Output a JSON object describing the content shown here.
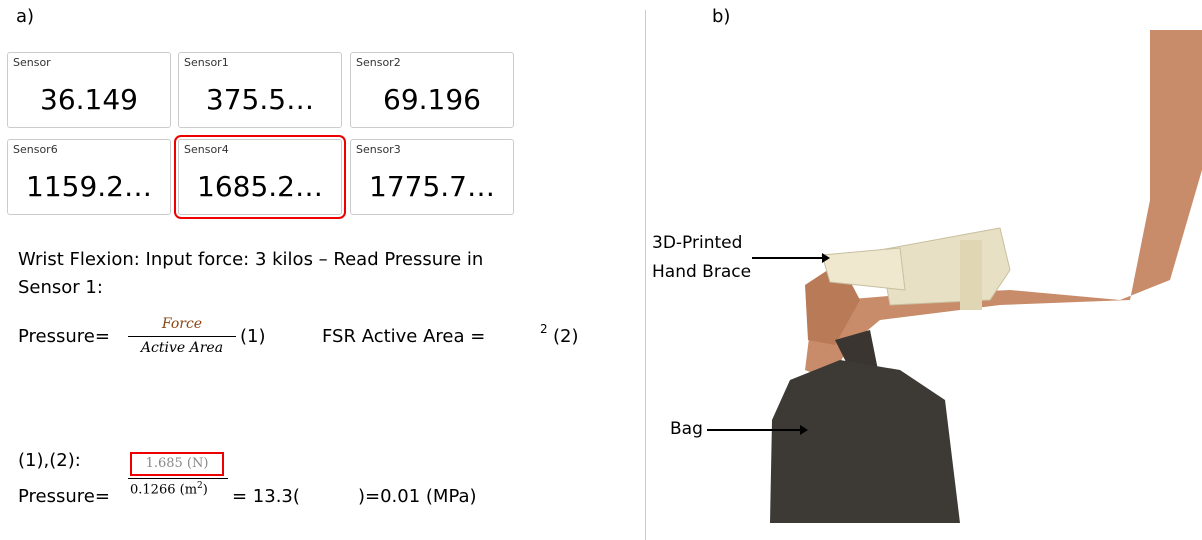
{
  "panels": {
    "a": "a)",
    "b": "b)"
  },
  "sensors": [
    {
      "label": "Sensor",
      "value": "36.149"
    },
    {
      "label": "Sensor1",
      "value": "375.5…"
    },
    {
      "label": "Sensor2",
      "value": "69.196"
    },
    {
      "label": "Sensor6",
      "value": "1159.2…"
    },
    {
      "label": "Sensor4",
      "value": "1685.2…"
    },
    {
      "label": "Sensor3",
      "value": "1775.7…"
    }
  ],
  "description": "Wrist Flexion: Input force: 3 kilos – Read Pressure in Sensor 1:",
  "equation1": {
    "lhs": "Pressure=",
    "numerator": "Force",
    "denominator": "Active Area",
    "tag": "(1)"
  },
  "equation2": {
    "lhs": "FSR Active Area =",
    "exponent": "2",
    "tag": "(2)"
  },
  "combine": "(1),(2):",
  "result": {
    "lhs": "Pressure=",
    "numerator": "1.685 (N)",
    "denominator": "0.1266 (m",
    "exponent": "2",
    "close": ")",
    "middle": "= 13.3(",
    "end": ")=0.01 (MPa)"
  },
  "annotations": {
    "brace": [
      "3D-Printed",
      "Hand Brace"
    ],
    "bag": "Bag"
  }
}
